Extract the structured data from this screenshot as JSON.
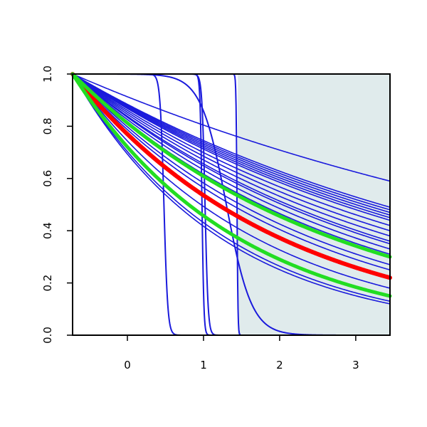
{
  "chart_data": {
    "type": "line",
    "title": "",
    "xlabel": "",
    "ylabel": "",
    "xlim": [
      -0.72,
      3.45
    ],
    "ylim": [
      0,
      1
    ],
    "x_ticks": [
      0,
      1,
      2,
      3
    ],
    "y_ticks": [
      0.0,
      0.2,
      0.4,
      0.6,
      0.8,
      1.0
    ],
    "x_tick_labels": [
      "0",
      "1",
      "2",
      "3"
    ],
    "y_tick_labels": [
      "0.0",
      "0.2",
      "0.4",
      "0.6",
      "0.8",
      "1.0"
    ],
    "grid": false,
    "legend": "none",
    "shaded_region": {
      "x_start": 1.45,
      "x_end": 3.45,
      "color": "#e0ebec"
    },
    "colors": {
      "blue": "#1a1adc",
      "red": "#ff0000",
      "green": "#22dd22"
    },
    "linear_decay_curves": {
      "end_values_at_xmax": [
        0.59,
        0.49,
        0.48,
        0.47,
        0.46,
        0.45,
        0.44,
        0.42,
        0.4,
        0.38,
        0.36,
        0.35,
        0.33,
        0.31,
        0.27,
        0.25,
        0.18,
        0.15,
        0.13,
        0.12
      ]
    },
    "step_drop_curves": [
      {
        "x_drop": 0.48,
        "steepness": 40,
        "hold_until": 0.4
      },
      {
        "x_drop": 0.98,
        "steepness": 80,
        "hold_until": 0.95
      },
      {
        "x_drop": 1.02,
        "steepness": 50,
        "hold_until": 0.97
      },
      {
        "x_drop": 1.44,
        "steepness": 160,
        "hold_until": 1.43
      },
      {
        "x_drop": 1.3,
        "steepness": 6,
        "hold_until": 0.3
      }
    ],
    "highlight_curves": [
      {
        "color": "red",
        "end_value": 0.22,
        "width": 6
      },
      {
        "color": "green",
        "end_value": 0.3,
        "width": 5
      },
      {
        "color": "green",
        "end_value": 0.15,
        "width": 5
      }
    ]
  }
}
